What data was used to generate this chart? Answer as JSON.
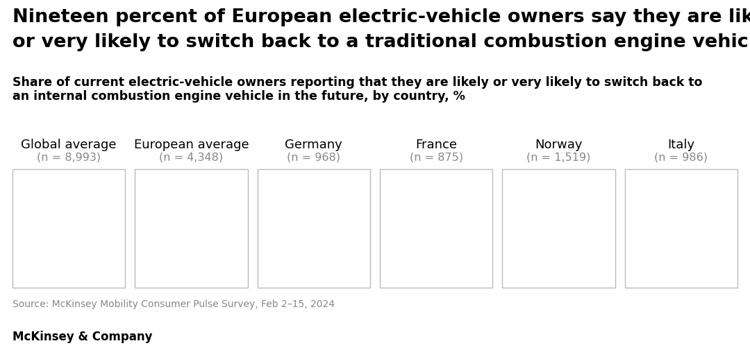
{
  "title_line1": "Nineteen percent of European electric-vehicle owners say they are likely",
  "title_line2": "or very likely to switch back to a traditional combustion engine vehicle.",
  "subtitle_line1": "Share of current electric-vehicle owners reporting that they are likely or very likely to switch back to",
  "subtitle_line2": "an internal combustion engine vehicle in the future, by country, %",
  "columns": [
    {
      "label": "Global average",
      "n": "n = 8,993"
    },
    {
      "label": "European average",
      "n": "n = 4,348"
    },
    {
      "label": "Germany",
      "n": "n = 968"
    },
    {
      "label": "France",
      "n": "n = 875"
    },
    {
      "label": "Norway",
      "n": "n = 1,519"
    },
    {
      "label": "Italy",
      "n": "n = 986"
    }
  ],
  "source": "Source: McKinsey Mobility Consumer Pulse Survey, Feb 2–15, 2024",
  "footer": "McKinsey & Company",
  "background_color": "#ffffff",
  "box_border_color": "#bbbbbb",
  "title_fontsize": 19.5,
  "subtitle_fontsize": 12.5,
  "label_fontsize": 13,
  "n_fontsize": 11.5,
  "source_fontsize": 10,
  "footer_fontsize": 12
}
